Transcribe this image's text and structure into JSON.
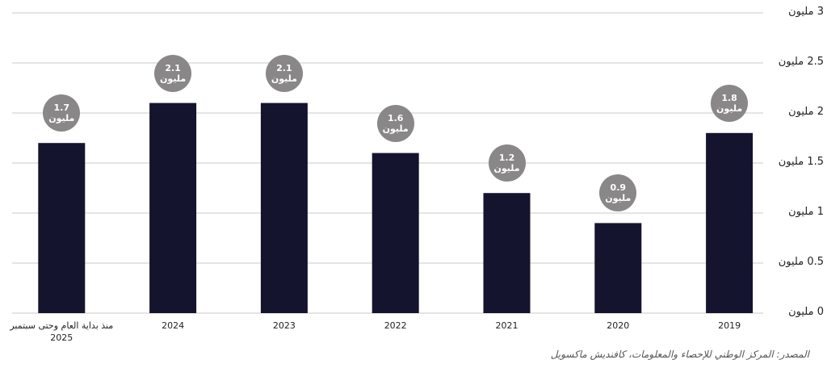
{
  "chart_data": {
    "type": "bar",
    "categories": [
      "2019",
      "2020",
      "2021",
      "2022",
      "2023",
      "2024",
      "منذ بداية العام وحتى سبتمبر 2025"
    ],
    "values": [
      1.8,
      0.9,
      1.2,
      1.6,
      2.1,
      2.1,
      1.7
    ],
    "value_labels": [
      "1.8 مليون",
      "0.9 مليون",
      "1.2 مليون",
      "1.6 مليون",
      "2.1 مليون",
      "2.1 مليون",
      "1.7 مليون"
    ],
    "color": "#14142f",
    "label_color": "#898787",
    "ylim": [
      0,
      3
    ],
    "yticks": [
      {
        "value": 0,
        "label": "0 مليون"
      },
      {
        "value": 0.5,
        "label": "0.5 مليون"
      },
      {
        "value": 1,
        "label": "1 مليون"
      },
      {
        "value": 1.5,
        "label": "1.5 مليون"
      },
      {
        "value": 2,
        "label": "2 مليون"
      },
      {
        "value": 2.5,
        "label": "2.5 مليون"
      },
      {
        "value": 3,
        "label": "3 مليون"
      }
    ],
    "grid": true,
    "source": "المصدر: المركز الوطني للإحصاء والمعلومات، كافنديش ماكسويل"
  }
}
